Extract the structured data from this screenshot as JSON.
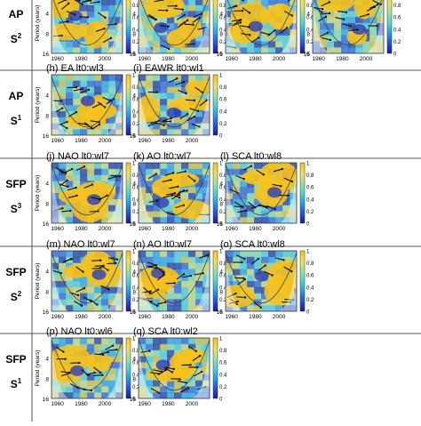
{
  "figure": {
    "rows": [
      {
        "group": "AP",
        "index": "S",
        "sup": "2",
        "panels": [
          {
            "label": "",
            "x_ticks": [
              "1960",
              "1980",
              "2000"
            ],
            "y_ticks": [
              "4",
              "8",
              "16"
            ],
            "ylabel": "Period (years)"
          },
          {
            "label": "",
            "x_ticks": [
              "1960",
              "1980",
              "2000"
            ],
            "y_ticks": [
              "4",
              "8",
              "16"
            ]
          },
          {
            "label": "",
            "x_ticks": [
              "1960",
              "1980",
              "2000"
            ],
            "y_ticks": [
              "4",
              "8",
              "16"
            ]
          },
          {
            "label": "",
            "x_ticks": [
              "1960",
              "1980",
              "2000"
            ],
            "y_ticks": [
              "4",
              "8",
              "16"
            ]
          }
        ]
      },
      {
        "group": "AP",
        "index": "S",
        "sup": "1",
        "panels": [
          {
            "label": "(h)  EA lt0:wl3",
            "x_ticks": [
              "1960",
              "1980",
              "2000"
            ],
            "y_ticks": [
              "4",
              "8",
              "16"
            ],
            "ylabel": "Period (years)"
          },
          {
            "label": "(i)  EAWR lt0:wl1",
            "x_ticks": [
              "1960",
              "1980",
              "2000"
            ],
            "y_ticks": [
              "4",
              "8",
              "16"
            ]
          }
        ]
      },
      {
        "group": "SFP",
        "index": "S",
        "sup": "3",
        "panels": [
          {
            "label": "(j)  NAO lt0:wl7",
            "x_ticks": [
              "1960",
              "1980",
              "2000"
            ],
            "y_ticks": [
              "4",
              "8",
              "16"
            ],
            "ylabel": "Period (years)"
          },
          {
            "label": "(k)  AO lt0:wl7",
            "x_ticks": [
              "1960",
              "1980",
              "2000"
            ],
            "y_ticks": [
              "4",
              "8",
              "16"
            ]
          },
          {
            "label": "(l)  SCA lt0:wl8",
            "x_ticks": [
              "1960",
              "1980",
              "2000"
            ],
            "y_ticks": [
              "4",
              "8",
              "16"
            ]
          }
        ]
      },
      {
        "group": "SFP",
        "index": "S",
        "sup": "2",
        "panels": [
          {
            "label": "(m)  NAO lt0:wl7",
            "x_ticks": [
              "1960",
              "1980",
              "2000"
            ],
            "y_ticks": [
              "4",
              "8",
              "16"
            ],
            "ylabel": "Period (years)"
          },
          {
            "label": "(n)  AO lt0:wl7",
            "x_ticks": [
              "1960",
              "1980",
              "2000"
            ],
            "y_ticks": [
              "4",
              "8",
              "16"
            ]
          },
          {
            "label": "(o)  SCA lt0:wl8",
            "x_ticks": [
              "1960",
              "1980",
              "2000"
            ],
            "y_ticks": [
              "4",
              "8",
              "16"
            ]
          }
        ]
      },
      {
        "group": "SFP",
        "index": "S",
        "sup": "1",
        "panels": [
          {
            "label": "(p)  NAO lt0:wl6",
            "x_ticks": [
              "1960",
              "1980",
              "2000"
            ],
            "y_ticks": [
              "4",
              "8",
              "16"
            ],
            "ylabel": "Period (years)"
          },
          {
            "label": "(q)  SCA lt0:wl2",
            "x_ticks": [
              "1960",
              "1980",
              "2000"
            ],
            "y_ticks": [
              "4",
              "8",
              "16"
            ]
          }
        ]
      }
    ],
    "colorbar": {
      "ticks": [
        "0",
        "0.2",
        "0.4",
        "0.6",
        "0.8",
        "1"
      ],
      "colors": [
        "#1a1a8c",
        "#2a4fd6",
        "#2a9de0",
        "#5ad0d0",
        "#9fe0a0",
        "#f0e060",
        "#f7c020"
      ]
    }
  },
  "chart_data": {
    "type": "heatmap",
    "description_of_axes": {
      "xlabel": "",
      "ylabel": "Period (years)"
    },
    "x_range": [
      1955,
      2015
    ],
    "y_range": [
      16,
      2
    ],
    "x_ticks": [
      1960,
      1980,
      2000
    ],
    "y_ticks": [
      4,
      8,
      16
    ],
    "color_range": [
      0,
      1
    ],
    "colorbar_ticks": [
      0,
      0.2,
      0.4,
      0.6,
      0.8,
      1
    ]
  }
}
